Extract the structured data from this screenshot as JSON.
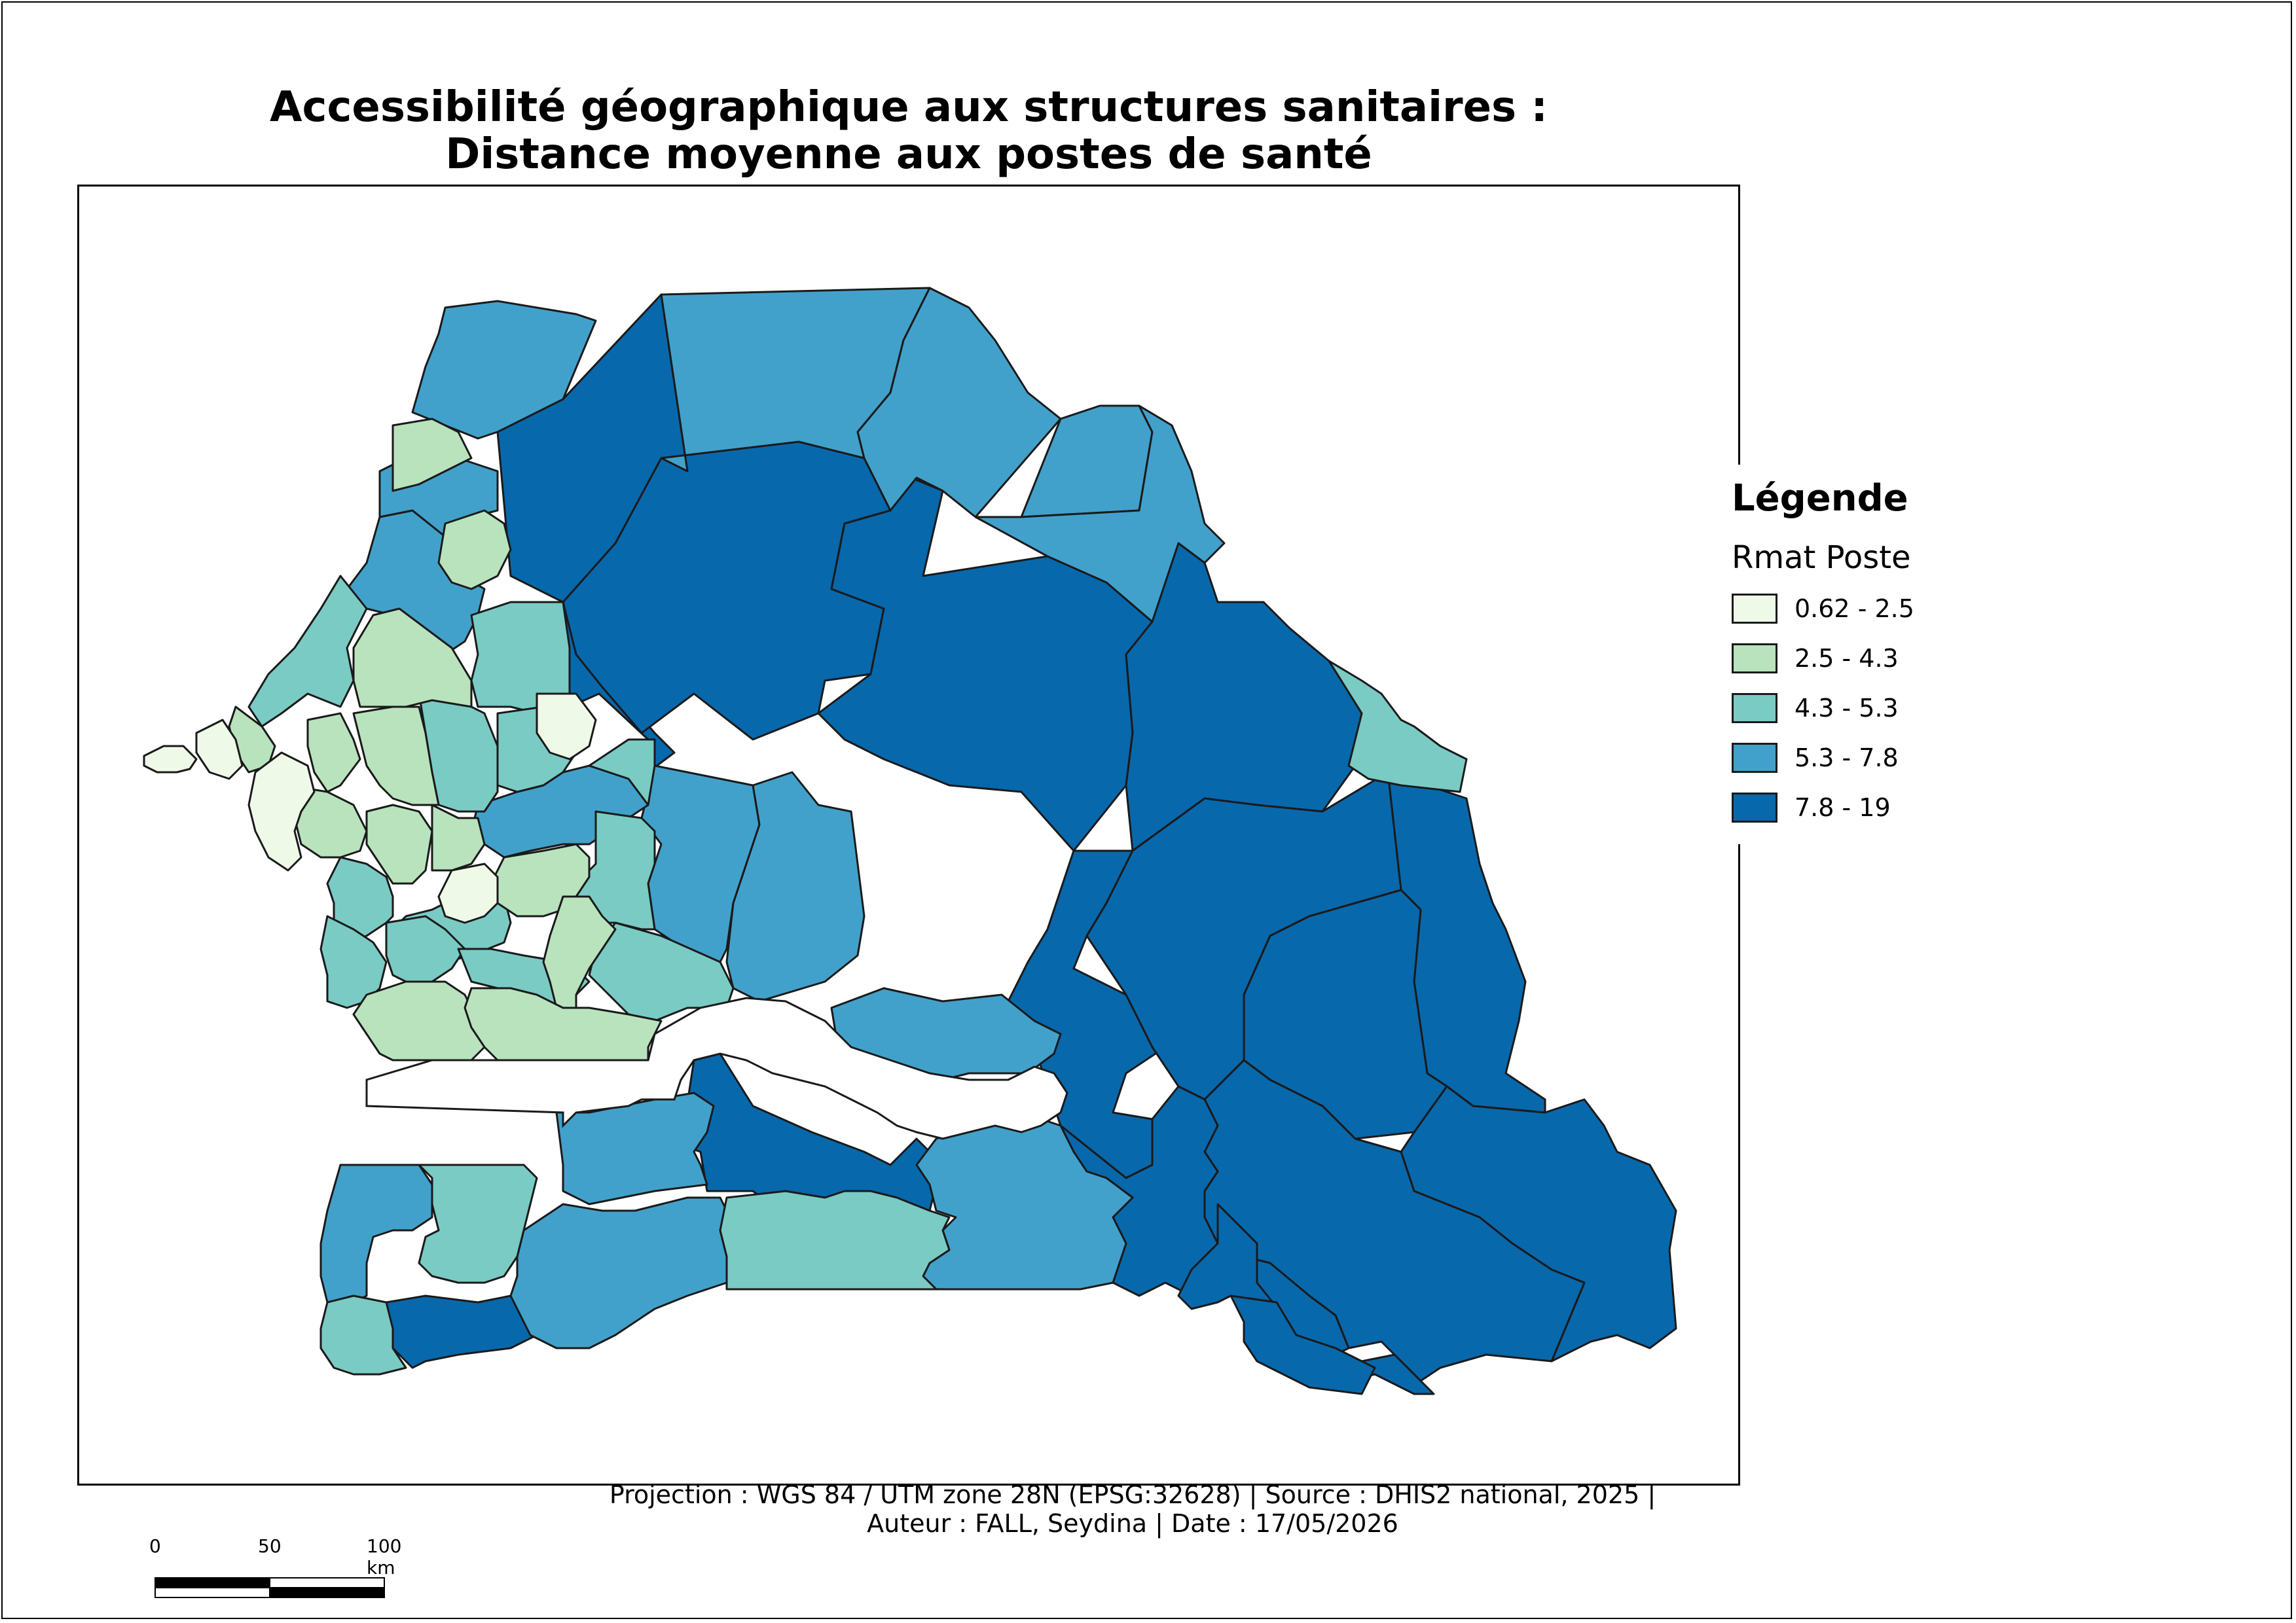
{
  "title": {
    "line1": "Accessibilité géographique aux structures sanitaires :",
    "line2": "Distance moyenne aux postes de santé"
  },
  "legend": {
    "title": "Légende",
    "subtitle": "Rmat Poste",
    "items": [
      {
        "label": "0.62 - 2.5",
        "color": "#eff9e8"
      },
      {
        "label": "2.5 - 4.3",
        "color": "#b9e3bd"
      },
      {
        "label": "4.3 - 5.3",
        "color": "#7acbc4"
      },
      {
        "label": "5.3 - 7.8",
        "color": "#42a1cb"
      },
      {
        "label": "7.8 - 19",
        "color": "#0868ac"
      }
    ]
  },
  "footer": {
    "line1": "Projection : WGS 84 / UTM zone 28N (EPSG:32628)    |    Source : DHIS2 national, 2025    |",
    "line2": "Auteur : FALL, Seydina    |    Date : 17/05/2026"
  },
  "scale": {
    "ticks": [
      "0",
      "50",
      "100 km"
    ]
  },
  "colors": {
    "class1": "#eff9e8",
    "class2": "#b9e3bd",
    "class3": "#7acbc4",
    "class4": "#42a1cb",
    "class5": "#0868ac",
    "outline": "#1a1a1a"
  }
}
